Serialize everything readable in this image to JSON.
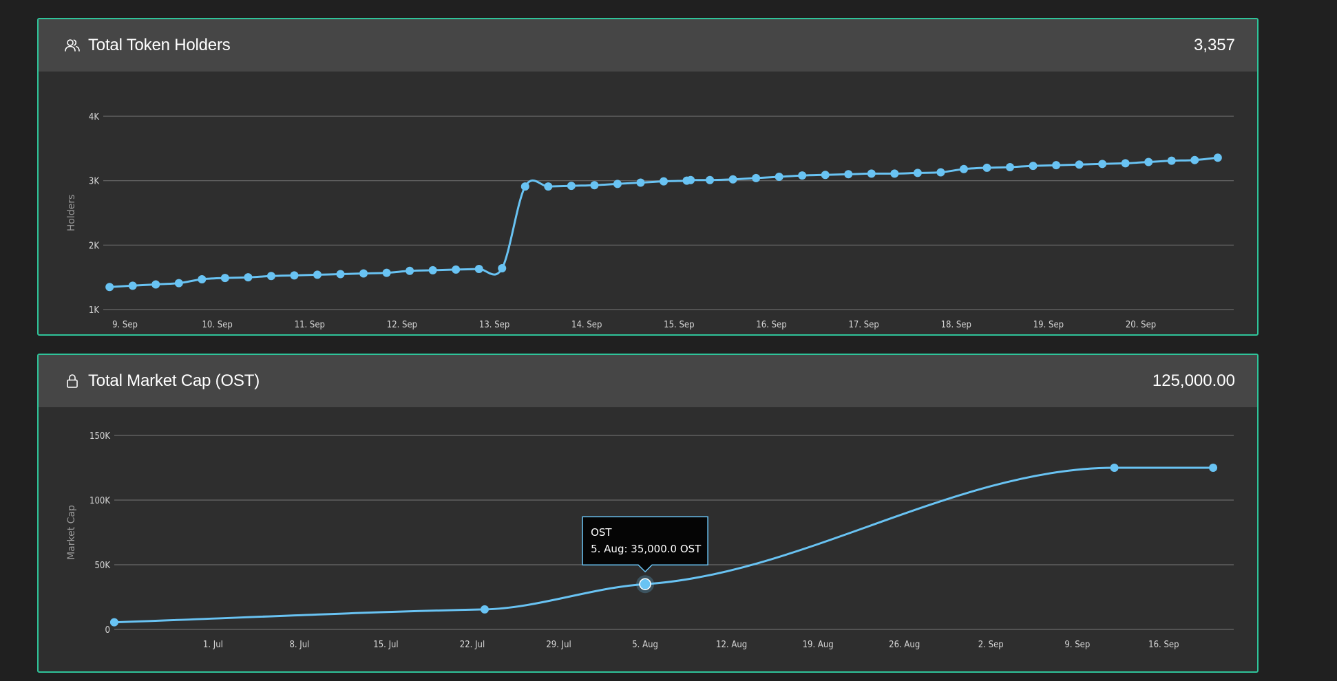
{
  "holders_panel": {
    "title": "Total Token Holders",
    "value": "3,357",
    "icon": "users-icon"
  },
  "cap_panel": {
    "title": "Total Market Cap (OST)",
    "value": "125,000.00",
    "icon": "lock-icon"
  },
  "colors": {
    "accent_border": "#2fc49a",
    "series": "#69c3f3",
    "header_bg": "#464646",
    "panel_bg": "#2e2e2e",
    "page_bg": "#202020"
  },
  "chart_data": [
    {
      "type": "line",
      "ylabel": "Holders",
      "yticks": [
        1000,
        2000,
        3000,
        4000
      ],
      "ytick_labels": [
        "1K",
        "2K",
        "3K",
        "4K"
      ],
      "ylim": [
        1000,
        4000
      ],
      "x_unit": "date",
      "xlim": [
        "2018-09-08 18:00",
        "2018-09-20 22:00"
      ],
      "xticks": [
        "2018-09-09",
        "2018-09-10",
        "2018-09-11",
        "2018-09-12",
        "2018-09-13",
        "2018-09-14",
        "2018-09-15",
        "2018-09-16",
        "2018-09-17",
        "2018-09-18",
        "2018-09-19",
        "2018-09-20"
      ],
      "xtick_labels": [
        "9. Sep",
        "10. Sep",
        "11. Sep",
        "12. Sep",
        "13. Sep",
        "14. Sep",
        "15. Sep",
        "16. Sep",
        "17. Sep",
        "18. Sep",
        "19. Sep",
        "20. Sep"
      ],
      "grid": true,
      "legend": "none",
      "x": [
        "2018-09-08 20:00",
        "2018-09-09 02:00",
        "2018-09-09 08:00",
        "2018-09-09 14:00",
        "2018-09-09 20:00",
        "2018-09-10 02:00",
        "2018-09-10 08:00",
        "2018-09-10 14:00",
        "2018-09-10 20:00",
        "2018-09-11 02:00",
        "2018-09-11 08:00",
        "2018-09-11 14:00",
        "2018-09-11 20:00",
        "2018-09-12 02:00",
        "2018-09-12 08:00",
        "2018-09-12 14:00",
        "2018-09-12 20:00",
        "2018-09-13 02:00",
        "2018-09-13 08:00",
        "2018-09-13 14:00",
        "2018-09-13 20:00",
        "2018-09-14 02:00",
        "2018-09-14 08:00",
        "2018-09-14 14:00",
        "2018-09-14 20:00",
        "2018-09-15 02:00",
        "2018-09-15 03:00",
        "2018-09-15 08:00",
        "2018-09-15 14:00",
        "2018-09-15 20:00",
        "2018-09-16 02:00",
        "2018-09-16 08:00",
        "2018-09-16 14:00",
        "2018-09-16 20:00",
        "2018-09-17 02:00",
        "2018-09-17 08:00",
        "2018-09-17 14:00",
        "2018-09-17 20:00",
        "2018-09-18 02:00",
        "2018-09-18 08:00",
        "2018-09-18 14:00",
        "2018-09-18 20:00",
        "2018-09-19 02:00",
        "2018-09-19 08:00",
        "2018-09-19 14:00",
        "2018-09-19 20:00",
        "2018-09-20 02:00",
        "2018-09-20 08:00",
        "2018-09-20 14:00",
        "2018-09-20 20:00"
      ],
      "y": [
        1350,
        1370,
        1390,
        1410,
        1470,
        1490,
        1500,
        1520,
        1530,
        1540,
        1550,
        1560,
        1570,
        1600,
        1610,
        1620,
        1630,
        1640,
        2910,
        2910,
        2920,
        2930,
        2950,
        2970,
        2990,
        3000,
        3010,
        3010,
        3020,
        3040,
        3060,
        3080,
        3090,
        3100,
        3110,
        3110,
        3120,
        3130,
        3180,
        3200,
        3210,
        3230,
        3240,
        3250,
        3260,
        3270,
        3290,
        3310,
        3320,
        3357
      ]
    },
    {
      "type": "line",
      "ylabel": "Market Cap",
      "yticks": [
        0,
        50000,
        100000,
        150000
      ],
      "ytick_labels": [
        "0",
        "50K",
        "100K",
        "150K"
      ],
      "ylim": [
        0,
        150000
      ],
      "x_unit": "date",
      "xlim": [
        "2018-06-22",
        "2018-09-21"
      ],
      "xticks": [
        "2018-07-01",
        "2018-07-08",
        "2018-07-15",
        "2018-07-22",
        "2018-07-29",
        "2018-08-05",
        "2018-08-12",
        "2018-08-19",
        "2018-08-26",
        "2018-09-02",
        "2018-09-09",
        "2018-09-16"
      ],
      "xtick_labels": [
        "1. Jul",
        "8. Jul",
        "15. Jul",
        "22. Jul",
        "29. Jul",
        "5. Aug",
        "12. Aug",
        "19. Aug",
        "26. Aug",
        "2. Sep",
        "9. Sep",
        "16. Sep"
      ],
      "grid": true,
      "legend": "none",
      "x": [
        "2018-06-23",
        "2018-07-23",
        "2018-08-05",
        "2018-09-12",
        "2018-09-20"
      ],
      "y": [
        5500,
        15500,
        35000,
        125000,
        125000
      ],
      "tooltip": {
        "series": "OST",
        "text": "5. Aug: 35,000.0 OST",
        "x": "2018-08-05",
        "y": 35000
      }
    }
  ]
}
